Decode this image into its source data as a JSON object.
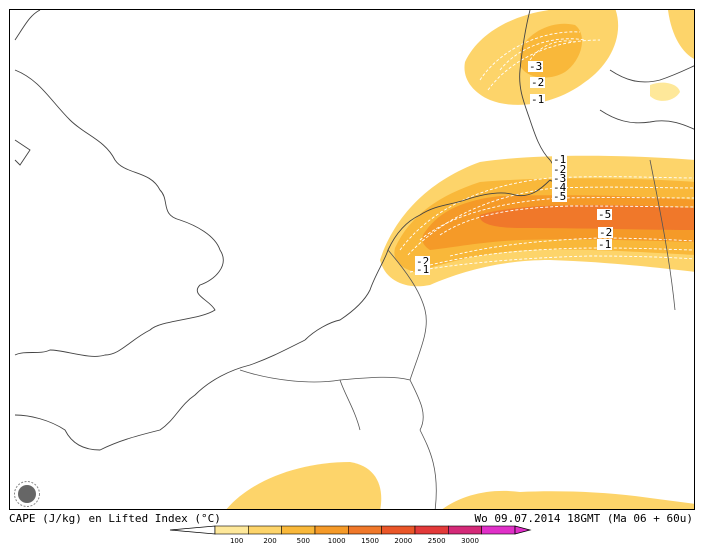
{
  "caption": {
    "left": "CAPE (J/kg) en Lifted Index (°C)",
    "right": "Wo 09.07.2014 18GMT (Ma 06 + 60u)"
  },
  "legend": {
    "ticks": [
      "100",
      "200",
      "500",
      "1000",
      "1500",
      "2000",
      "2500",
      "3000"
    ],
    "colors": [
      "#fee89a",
      "#fdd46a",
      "#f9b83a",
      "#f59a28",
      "#f0782a",
      "#ea5628",
      "#e33a3a",
      "#d42a78",
      "#e030c8"
    ]
  },
  "lifted_index_labels": [
    "-3",
    "-2",
    "-1",
    "-1",
    "-2",
    "-3",
    "-4",
    "-5",
    "-5",
    "-2",
    "-1",
    "-2",
    "-1"
  ],
  "icons": {
    "logo": "sun-logo-icon"
  }
}
